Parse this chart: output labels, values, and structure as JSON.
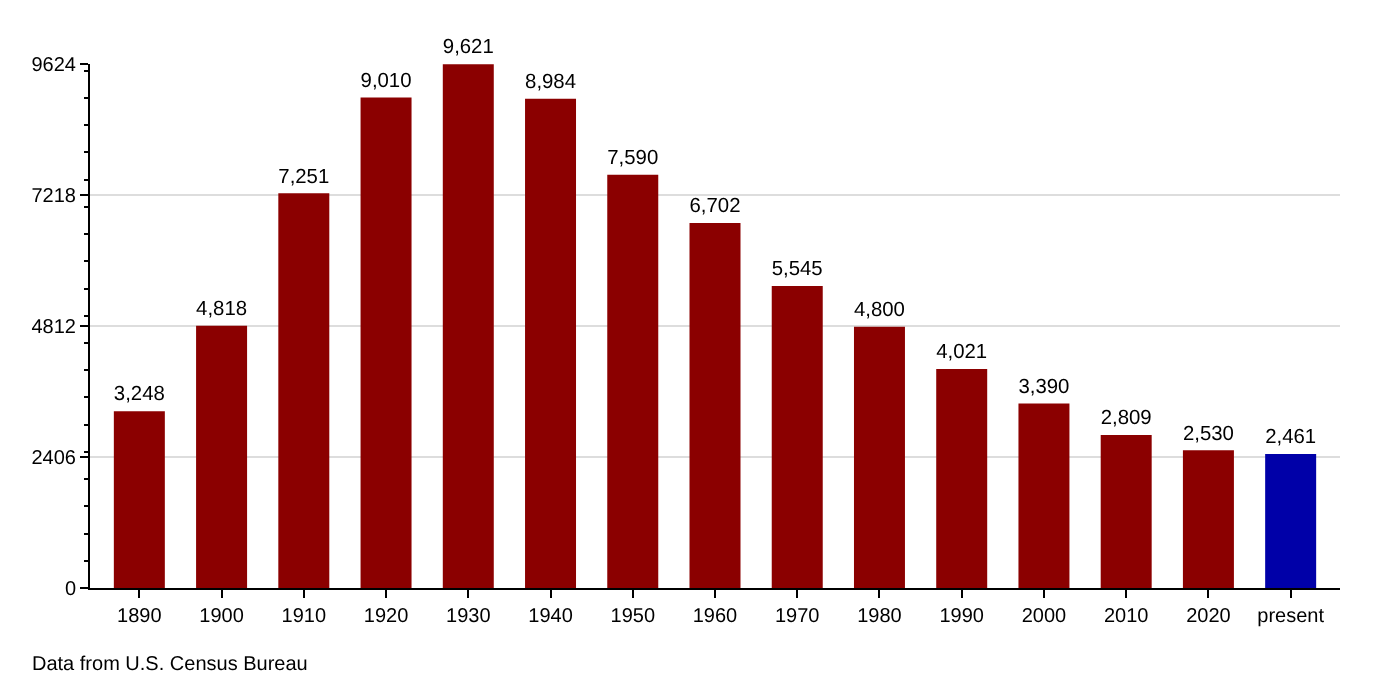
{
  "chart_data": {
    "type": "bar",
    "categories": [
      "1890",
      "1900",
      "1910",
      "1920",
      "1930",
      "1940",
      "1950",
      "1960",
      "1970",
      "1980",
      "1990",
      "2000",
      "2010",
      "2020",
      "present"
    ],
    "values": [
      3248,
      4818,
      7251,
      9010,
      9621,
      8984,
      7590,
      6702,
      5545,
      4800,
      4021,
      3390,
      2809,
      2530,
      2461
    ],
    "colors": [
      "#8b0000",
      "#8b0000",
      "#8b0000",
      "#8b0000",
      "#8b0000",
      "#8b0000",
      "#8b0000",
      "#8b0000",
      "#8b0000",
      "#8b0000",
      "#8b0000",
      "#8b0000",
      "#8b0000",
      "#8b0000",
      "#0000a8"
    ],
    "value_labels": [
      "3,248",
      "4,818",
      "7,251",
      "9,010",
      "9,621",
      "8,984",
      "7,590",
      "6,702",
      "5,545",
      "4,800",
      "4,021",
      "3,390",
      "2,809",
      "2,530",
      "2,461"
    ],
    "ylim": [
      0,
      9624
    ],
    "yticks": [
      0,
      2406,
      4812,
      7218,
      9624
    ],
    "grid": "y",
    "annotations": [
      "Data from U.S. Census Bureau"
    ]
  }
}
